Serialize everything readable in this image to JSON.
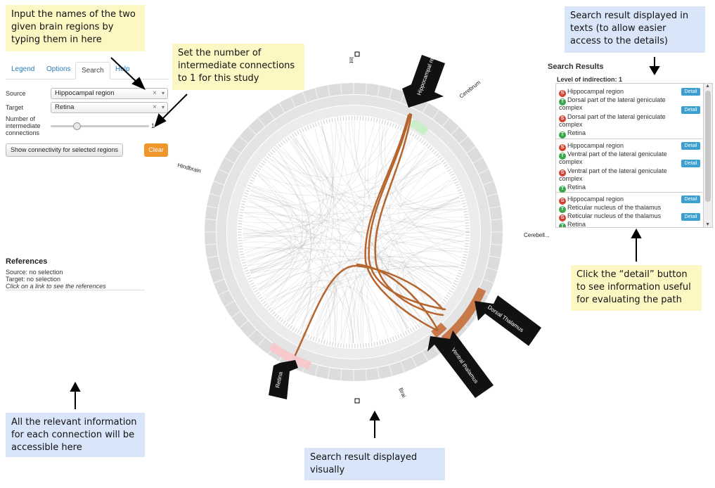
{
  "callouts": {
    "input_names": "Input the names of the two given brain regions by typing them in here",
    "set_number": "Set the number of intermediate connections to 1 for this study",
    "search_text": "Search result displayed in texts (to allow easier access to the details)",
    "click_detail": "Click the “detail” button to see information useful for evaluating the path",
    "all_relevant": "All the relevant information for each connection will be accessible here",
    "search_visual": "Search result displayed visually"
  },
  "tabs": [
    {
      "label": "Legend"
    },
    {
      "label": "Options"
    },
    {
      "label": "Search"
    },
    {
      "label": "Help"
    }
  ],
  "search_form": {
    "source_label": "Source",
    "source_value": "Hippocampal region",
    "target_label": "Target",
    "target_value": "Retina",
    "clear_glyph": "×",
    "connections_label_1": "Number of",
    "connections_label_2": "intermediate",
    "connections_label_3": "connections",
    "connections_value": "1",
    "connections_fraction": 0.24,
    "show_button": "Show connectivity for selected regions",
    "clear_button": "Clear"
  },
  "references": {
    "title": "References",
    "source": "Source: no selection",
    "target": "Target: no selection",
    "hint": "Click on a link to see the references"
  },
  "results": {
    "title": "Search Results",
    "level": "Level of indirection: 1",
    "detail_label": "Detail",
    "paths": [
      {
        "rows": [
          {
            "badge": "S",
            "text": "Hippocampal region"
          },
          {
            "badge": "T",
            "text": "Dorsal part of the lateral geniculate"
          },
          {
            "badge": "",
            "text": "complex"
          },
          {
            "badge": "S",
            "text": "Dorsal part of the lateral geniculate"
          },
          {
            "badge": "",
            "text": "complex"
          },
          {
            "badge": "T",
            "text": "Retina"
          }
        ]
      },
      {
        "rows": [
          {
            "badge": "S",
            "text": "Hippocampal region"
          },
          {
            "badge": "T",
            "text": "Ventral part of the lateral geniculate"
          },
          {
            "badge": "",
            "text": "complex"
          },
          {
            "badge": "S",
            "text": "Ventral part of the lateral geniculate"
          },
          {
            "badge": "",
            "text": "complex"
          },
          {
            "badge": "T",
            "text": "Retina"
          }
        ]
      },
      {
        "rows": [
          {
            "badge": "S",
            "text": "Hippocampal region"
          },
          {
            "badge": "T",
            "text": "Reticular nucleus of the thalamus"
          },
          {
            "badge": "S",
            "text": "Reticular nucleus of the thalamus"
          },
          {
            "badge": "T",
            "text": "Retina"
          }
        ]
      }
    ]
  },
  "diagram": {
    "region_labels": {
      "hind": "Hindbrain",
      "cerebrum": "Cerebrum",
      "cerebellum": "Cerebell...",
      "int": "Int",
      "brain": "Brai"
    },
    "markers": {
      "hippocampal": "Hippocampal regi...",
      "dorsal": "Dorsal Thalamus",
      "ventral": "Ventral thalamus",
      "retina": "Retina"
    },
    "colors": {
      "path": "#b5652e",
      "highlight_green": "#c9efc9",
      "highlight_pink": "#f7c9cc",
      "ring": "#dcdcdc"
    }
  }
}
